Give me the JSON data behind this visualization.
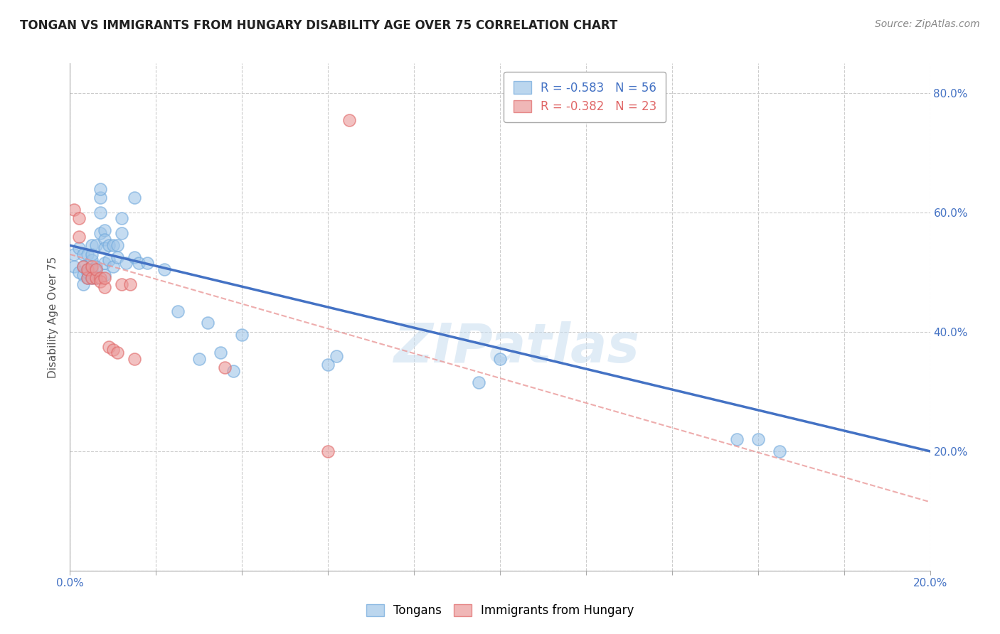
{
  "title": "TONGAN VS IMMIGRANTS FROM HUNGARY DISABILITY AGE OVER 75 CORRELATION CHART",
  "source": "Source: ZipAtlas.com",
  "ylabel": "Disability Age Over 75",
  "xlim": [
    0.0,
    0.2
  ],
  "ylim": [
    0.0,
    0.85
  ],
  "x_ticks": [
    0.0,
    0.02,
    0.04,
    0.06,
    0.08,
    0.1,
    0.12,
    0.14,
    0.16,
    0.18,
    0.2
  ],
  "y_ticks": [
    0.0,
    0.2,
    0.4,
    0.6,
    0.8
  ],
  "blue_R": "-0.583",
  "blue_N": "56",
  "pink_R": "-0.382",
  "pink_N": "23",
  "blue_color": "#9fc5e8",
  "pink_color": "#ea9999",
  "blue_edge_color": "#6fa8dc",
  "pink_edge_color": "#e06666",
  "blue_line_color": "#4472c4",
  "pink_line_color": "#ea9999",
  "grid_color": "#cccccc",
  "background_color": "#ffffff",
  "watermark": "ZIPatlas",
  "blue_points_x": [
    0.001,
    0.001,
    0.002,
    0.002,
    0.003,
    0.003,
    0.003,
    0.003,
    0.004,
    0.004,
    0.004,
    0.004,
    0.005,
    0.005,
    0.005,
    0.005,
    0.005,
    0.006,
    0.006,
    0.006,
    0.007,
    0.007,
    0.007,
    0.007,
    0.008,
    0.008,
    0.008,
    0.008,
    0.008,
    0.009,
    0.009,
    0.01,
    0.01,
    0.011,
    0.011,
    0.012,
    0.012,
    0.013,
    0.015,
    0.015,
    0.016,
    0.018,
    0.022,
    0.025,
    0.03,
    0.032,
    0.035,
    0.038,
    0.04,
    0.06,
    0.062,
    0.095,
    0.1,
    0.155,
    0.16,
    0.165
  ],
  "blue_points_y": [
    0.53,
    0.51,
    0.54,
    0.5,
    0.53,
    0.51,
    0.495,
    0.48,
    0.505,
    0.49,
    0.53,
    0.5,
    0.52,
    0.505,
    0.545,
    0.49,
    0.53,
    0.51,
    0.545,
    0.49,
    0.625,
    0.64,
    0.6,
    0.565,
    0.57,
    0.555,
    0.54,
    0.515,
    0.495,
    0.545,
    0.52,
    0.545,
    0.51,
    0.545,
    0.525,
    0.565,
    0.59,
    0.515,
    0.625,
    0.525,
    0.515,
    0.515,
    0.505,
    0.435,
    0.355,
    0.415,
    0.365,
    0.335,
    0.395,
    0.345,
    0.36,
    0.315,
    0.355,
    0.22,
    0.22,
    0.2
  ],
  "pink_points_x": [
    0.001,
    0.002,
    0.002,
    0.003,
    0.004,
    0.004,
    0.005,
    0.005,
    0.006,
    0.006,
    0.007,
    0.007,
    0.008,
    0.008,
    0.009,
    0.01,
    0.011,
    0.012,
    0.014,
    0.015,
    0.036,
    0.06,
    0.065
  ],
  "pink_points_y": [
    0.605,
    0.59,
    0.56,
    0.51,
    0.49,
    0.505,
    0.49,
    0.51,
    0.49,
    0.505,
    0.49,
    0.485,
    0.475,
    0.49,
    0.375,
    0.37,
    0.365,
    0.48,
    0.48,
    0.355,
    0.34,
    0.2,
    0.755
  ],
  "blue_trend_x": [
    0.0,
    0.2
  ],
  "blue_trend_y": [
    0.545,
    0.2
  ],
  "pink_trend_x": [
    0.0,
    0.2
  ],
  "pink_trend_y": [
    0.53,
    0.115
  ]
}
